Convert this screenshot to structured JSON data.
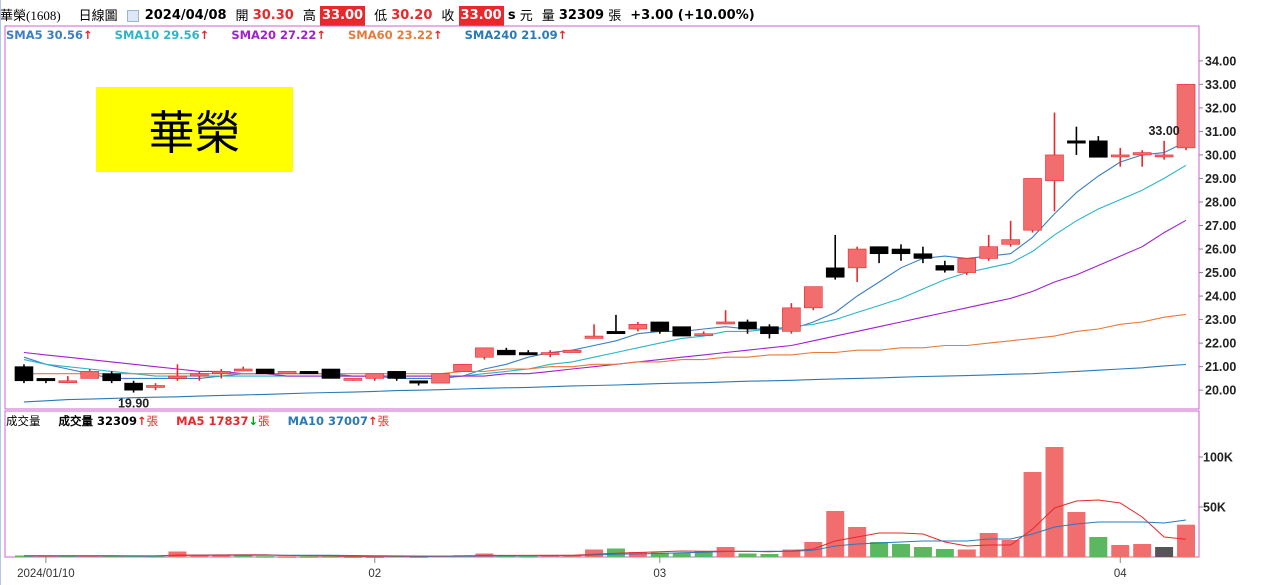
{
  "header": {
    "stock_name": "華榮(1608)",
    "chart_kind": "日線圖",
    "date": "2024/04/08",
    "open_label": "開",
    "open": "30.30",
    "high_label": "高",
    "high": "33.00",
    "low_label": "低",
    "low": "30.20",
    "close_label": "收",
    "close": "33.00",
    "s_label": "s",
    "unit_label": "元",
    "volume_label": "量",
    "volume": "32309",
    "volume_unit": "張",
    "change": "+3.00 (+10.00%)"
  },
  "sma_legend": [
    {
      "label": "SMA5 30.56",
      "color": "#3a7fc8",
      "arrow": "↑"
    },
    {
      "label": "SMA10 29.56",
      "color": "#2bb5c9",
      "arrow": "↑"
    },
    {
      "label": "SMA20 27.22",
      "color": "#a020d0",
      "arrow": "↑"
    },
    {
      "label": "SMA60 23.22",
      "color": "#e87a3a",
      "arrow": "↑"
    },
    {
      "label": "SMA240 21.09",
      "color": "#2a7ab8",
      "arrow": "↑"
    }
  ],
  "volume_legend": {
    "title": "成交量",
    "items": [
      {
        "label": "成交量 32309",
        "arrow": "↑",
        "arrow_dir": "up",
        "unit": "張",
        "color": "#000000"
      },
      {
        "label": "MA5 17837",
        "arrow": "↓",
        "arrow_dir": "down",
        "unit": "張",
        "color": "#e8282b"
      },
      {
        "label": "MA10 37007",
        "arrow": "↑",
        "arrow_dir": "up",
        "unit": "張",
        "color": "#2a7ab8"
      }
    ]
  },
  "title_box": "華榮",
  "colors": {
    "up": "#f26d6d",
    "down": "#000000",
    "vol_down": "#5bb860",
    "border": "#d060d0"
  },
  "chart_data": [
    {
      "type": "candlestick",
      "ylim": [
        19.2,
        34.8
      ],
      "yticks": [
        "20.00",
        "21.00",
        "22.00",
        "23.00",
        "24.00",
        "25.00",
        "26.00",
        "27.00",
        "28.00",
        "29.00",
        "30.00",
        "31.00",
        "32.00",
        "33.00",
        "34.00"
      ],
      "annotations": [
        {
          "index": 5,
          "text": "19.90",
          "pos": "below"
        },
        {
          "index": 52,
          "text": "33.00",
          "pos": "above"
        }
      ],
      "ohlc": [
        [
          21.0,
          21.1,
          20.3,
          20.4
        ],
        [
          20.5,
          20.5,
          20.3,
          20.4
        ],
        [
          20.4,
          20.6,
          20.3,
          20.4
        ],
        [
          20.5,
          20.9,
          20.5,
          20.8
        ],
        [
          20.7,
          20.8,
          20.3,
          20.4
        ],
        [
          20.3,
          20.4,
          19.9,
          20.0
        ],
        [
          20.2,
          20.3,
          20.0,
          20.2
        ],
        [
          20.5,
          21.1,
          20.4,
          20.6
        ],
        [
          20.6,
          20.8,
          20.4,
          20.7
        ],
        [
          20.7,
          20.9,
          20.5,
          20.8
        ],
        [
          20.9,
          21.0,
          20.8,
          20.9
        ],
        [
          20.9,
          20.9,
          20.7,
          20.7
        ],
        [
          20.7,
          20.8,
          20.7,
          20.8
        ],
        [
          20.8,
          20.8,
          20.7,
          20.7
        ],
        [
          20.9,
          20.9,
          20.5,
          20.5
        ],
        [
          20.5,
          20.5,
          20.4,
          20.5
        ],
        [
          20.5,
          20.7,
          20.4,
          20.7
        ],
        [
          20.8,
          20.8,
          20.4,
          20.5
        ],
        [
          20.4,
          20.4,
          20.2,
          20.3
        ],
        [
          20.3,
          20.7,
          20.3,
          20.7
        ],
        [
          20.8,
          21.1,
          20.8,
          21.1
        ],
        [
          21.4,
          21.8,
          21.3,
          21.8
        ],
        [
          21.7,
          21.8,
          21.5,
          21.5
        ],
        [
          21.6,
          21.7,
          21.5,
          21.5
        ],
        [
          21.6,
          21.7,
          21.4,
          21.6
        ],
        [
          21.6,
          21.7,
          21.6,
          21.7
        ],
        [
          22.2,
          22.8,
          22.2,
          22.3
        ],
        [
          22.5,
          23.2,
          22.4,
          22.4
        ],
        [
          22.6,
          22.9,
          22.5,
          22.8
        ],
        [
          22.9,
          22.9,
          22.4,
          22.5
        ],
        [
          22.7,
          22.7,
          22.3,
          22.3
        ],
        [
          22.4,
          22.5,
          22.3,
          22.4
        ],
        [
          22.9,
          23.4,
          22.8,
          22.9
        ],
        [
          22.9,
          23.0,
          22.4,
          22.6
        ],
        [
          22.7,
          22.8,
          22.2,
          22.4
        ],
        [
          22.5,
          23.7,
          22.4,
          23.5
        ],
        [
          23.5,
          24.4,
          23.4,
          24.4
        ],
        [
          25.2,
          26.6,
          24.7,
          24.8
        ],
        [
          25.2,
          26.1,
          24.6,
          26.0
        ],
        [
          26.1,
          26.1,
          25.4,
          25.8
        ],
        [
          26.0,
          26.2,
          25.5,
          25.8
        ],
        [
          25.8,
          26.1,
          25.4,
          25.6
        ],
        [
          25.3,
          25.5,
          25.0,
          25.1
        ],
        [
          25.0,
          25.6,
          24.9,
          25.6
        ],
        [
          25.6,
          26.6,
          25.5,
          26.1
        ],
        [
          26.2,
          27.2,
          26.1,
          26.4
        ],
        [
          26.8,
          29.0,
          26.7,
          29.0
        ],
        [
          28.9,
          31.8,
          27.6,
          30.0
        ],
        [
          30.6,
          31.2,
          30.0,
          30.5
        ],
        [
          30.6,
          30.8,
          30.0,
          29.9
        ],
        [
          30.0,
          30.3,
          29.5,
          30.0
        ],
        [
          30.0,
          30.2,
          29.5,
          30.1
        ],
        [
          30.0,
          30.6,
          29.8,
          30.0
        ],
        [
          30.3,
          33.0,
          30.2,
          33.0
        ]
      ],
      "sma": {
        "SMA5": {
          "color": "#3a7fc8",
          "values": [
            21.4,
            21.1,
            20.9,
            20.7,
            20.5,
            20.5,
            20.5,
            20.5,
            20.5,
            20.6,
            20.7,
            20.7,
            20.7,
            20.7,
            20.7,
            20.6,
            20.6,
            20.5,
            20.5,
            20.5,
            20.6,
            20.9,
            21.1,
            21.4,
            21.6,
            21.7,
            21.9,
            22.1,
            22.4,
            22.5,
            22.5,
            22.6,
            22.7,
            22.6,
            22.6,
            22.6,
            22.9,
            23.3,
            24.0,
            24.6,
            25.2,
            25.6,
            25.7,
            25.6,
            25.7,
            25.8,
            26.5,
            27.5,
            28.4,
            29.1,
            29.7,
            30.0,
            30.1,
            30.56
          ]
        },
        "SMA10": {
          "color": "#2bb5c9",
          "values": [
            21.3,
            21.1,
            21.0,
            20.9,
            20.8,
            20.7,
            20.6,
            20.6,
            20.6,
            20.6,
            20.6,
            20.6,
            20.6,
            20.6,
            20.6,
            20.6,
            20.6,
            20.6,
            20.6,
            20.6,
            20.6,
            20.7,
            20.8,
            20.9,
            21.1,
            21.2,
            21.4,
            21.6,
            21.8,
            22.0,
            22.2,
            22.3,
            22.5,
            22.5,
            22.6,
            22.7,
            22.8,
            23.0,
            23.3,
            23.6,
            23.9,
            24.3,
            24.7,
            25.0,
            25.2,
            25.4,
            25.9,
            26.6,
            27.2,
            27.7,
            28.1,
            28.5,
            29.0,
            29.56
          ]
        },
        "SMA20": {
          "color": "#a020d0",
          "values": [
            21.6,
            21.5,
            21.4,
            21.3,
            21.2,
            21.1,
            21.0,
            20.9,
            20.8,
            20.8,
            20.7,
            20.7,
            20.6,
            20.6,
            20.6,
            20.6,
            20.6,
            20.6,
            20.6,
            20.6,
            20.6,
            20.6,
            20.7,
            20.7,
            20.8,
            20.9,
            21.0,
            21.1,
            21.2,
            21.3,
            21.4,
            21.5,
            21.6,
            21.7,
            21.8,
            21.9,
            22.1,
            22.3,
            22.5,
            22.7,
            22.9,
            23.1,
            23.3,
            23.5,
            23.7,
            23.9,
            24.2,
            24.6,
            24.9,
            25.3,
            25.7,
            26.1,
            26.7,
            27.22
          ]
        },
        "SMA60": {
          "color": "#e87a3a",
          "values": [
            20.7,
            20.7,
            20.7,
            20.7,
            20.7,
            20.7,
            20.7,
            20.7,
            20.7,
            20.7,
            20.7,
            20.7,
            20.7,
            20.7,
            20.7,
            20.7,
            20.7,
            20.7,
            20.7,
            20.7,
            20.8,
            20.8,
            20.9,
            20.9,
            21.0,
            21.0,
            21.1,
            21.1,
            21.2,
            21.2,
            21.3,
            21.3,
            21.4,
            21.4,
            21.5,
            21.5,
            21.6,
            21.6,
            21.7,
            21.7,
            21.8,
            21.8,
            21.9,
            21.9,
            22.0,
            22.1,
            22.2,
            22.3,
            22.5,
            22.6,
            22.8,
            22.9,
            23.1,
            23.22
          ]
        },
        "SMA240": {
          "color": "#2a7ab8",
          "values": [
            19.5,
            19.55,
            19.6,
            19.62,
            19.65,
            19.68,
            19.7,
            19.72,
            19.75,
            19.78,
            19.8,
            19.82,
            19.85,
            19.88,
            19.9,
            19.92,
            19.95,
            19.98,
            20.0,
            20.02,
            20.05,
            20.08,
            20.1,
            20.12,
            20.15,
            20.18,
            20.2,
            20.22,
            20.25,
            20.28,
            20.3,
            20.32,
            20.35,
            20.38,
            20.4,
            20.42,
            20.45,
            20.48,
            20.5,
            20.52,
            20.55,
            20.58,
            20.6,
            20.62,
            20.65,
            20.68,
            20.7,
            20.75,
            20.8,
            20.85,
            20.9,
            20.95,
            21.03,
            21.09
          ]
        }
      }
    },
    {
      "type": "bar",
      "title": "成交量",
      "ylim": [
        0,
        130000
      ],
      "yticks": [
        {
          "value": 50000,
          "label": "50K"
        },
        {
          "value": 100000,
          "label": "100K"
        }
      ],
      "xticks": [
        {
          "index": 1,
          "label": "2024/01/10"
        },
        {
          "index": 16,
          "label": "02"
        },
        {
          "index": 29,
          "label": "03"
        },
        {
          "index": 50,
          "label": "04"
        }
      ],
      "values": [
        1500,
        1200,
        1000,
        1300,
        1100,
        1000,
        900,
        5500,
        1800,
        1500,
        1800,
        800,
        700,
        700,
        800,
        600,
        500,
        900,
        600,
        1000,
        1800,
        3500,
        1200,
        900,
        1000,
        1300,
        7500,
        8500,
        4800,
        4500,
        4000,
        5500,
        10000,
        3500,
        3000,
        7500,
        15000,
        46000,
        30000,
        15000,
        13000,
        10000,
        8000,
        7500,
        24000,
        17000,
        85000,
        110000,
        45000,
        20000,
        12000,
        13000,
        10000,
        32309
      ],
      "colors": [
        "d",
        "u",
        "d",
        "u",
        "d",
        "d",
        "d",
        "u",
        "u",
        "u",
        "d",
        "d",
        "u",
        "d",
        "d",
        "d",
        "u",
        "d",
        "d",
        "u",
        "u",
        "u",
        "d",
        "d",
        "u",
        "u",
        "u",
        "d",
        "u",
        "d",
        "d",
        "d",
        "u",
        "d",
        "d",
        "u",
        "u",
        "u",
        "u",
        "d",
        "d",
        "d",
        "d",
        "u",
        "u",
        "u",
        "u",
        "u",
        "u",
        "d",
        "u",
        "u",
        "d",
        "u"
      ],
      "ma5": [
        1300,
        1250,
        1200,
        1200,
        1200,
        1100,
        1100,
        1900,
        2000,
        2100,
        2300,
        2200,
        1500,
        1200,
        1100,
        800,
        700,
        700,
        650,
        700,
        1000,
        1600,
        1600,
        1600,
        1700,
        1700,
        2800,
        3800,
        4500,
        5300,
        6000,
        5700,
        5700,
        5700,
        5300,
        6000,
        8000,
        16000,
        20000,
        24000,
        24000,
        23000,
        15000,
        11000,
        12000,
        12000,
        28000,
        49000,
        56000,
        57000,
        54000,
        40000,
        20000,
        17837
      ],
      "ma10": [
        1300,
        1300,
        1250,
        1250,
        1200,
        1150,
        1100,
        1500,
        1600,
        1700,
        1800,
        1800,
        1800,
        1700,
        1700,
        1500,
        1300,
        1100,
        1000,
        900,
        850,
        1100,
        1200,
        1300,
        1350,
        1400,
        2000,
        2700,
        3100,
        3500,
        4300,
        4800,
        5500,
        5600,
        5700,
        5600,
        6800,
        11000,
        13000,
        14000,
        15000,
        16000,
        16000,
        16000,
        18000,
        18000,
        23000,
        30000,
        33000,
        35000,
        35000,
        35000,
        34000,
        37007
      ]
    }
  ]
}
